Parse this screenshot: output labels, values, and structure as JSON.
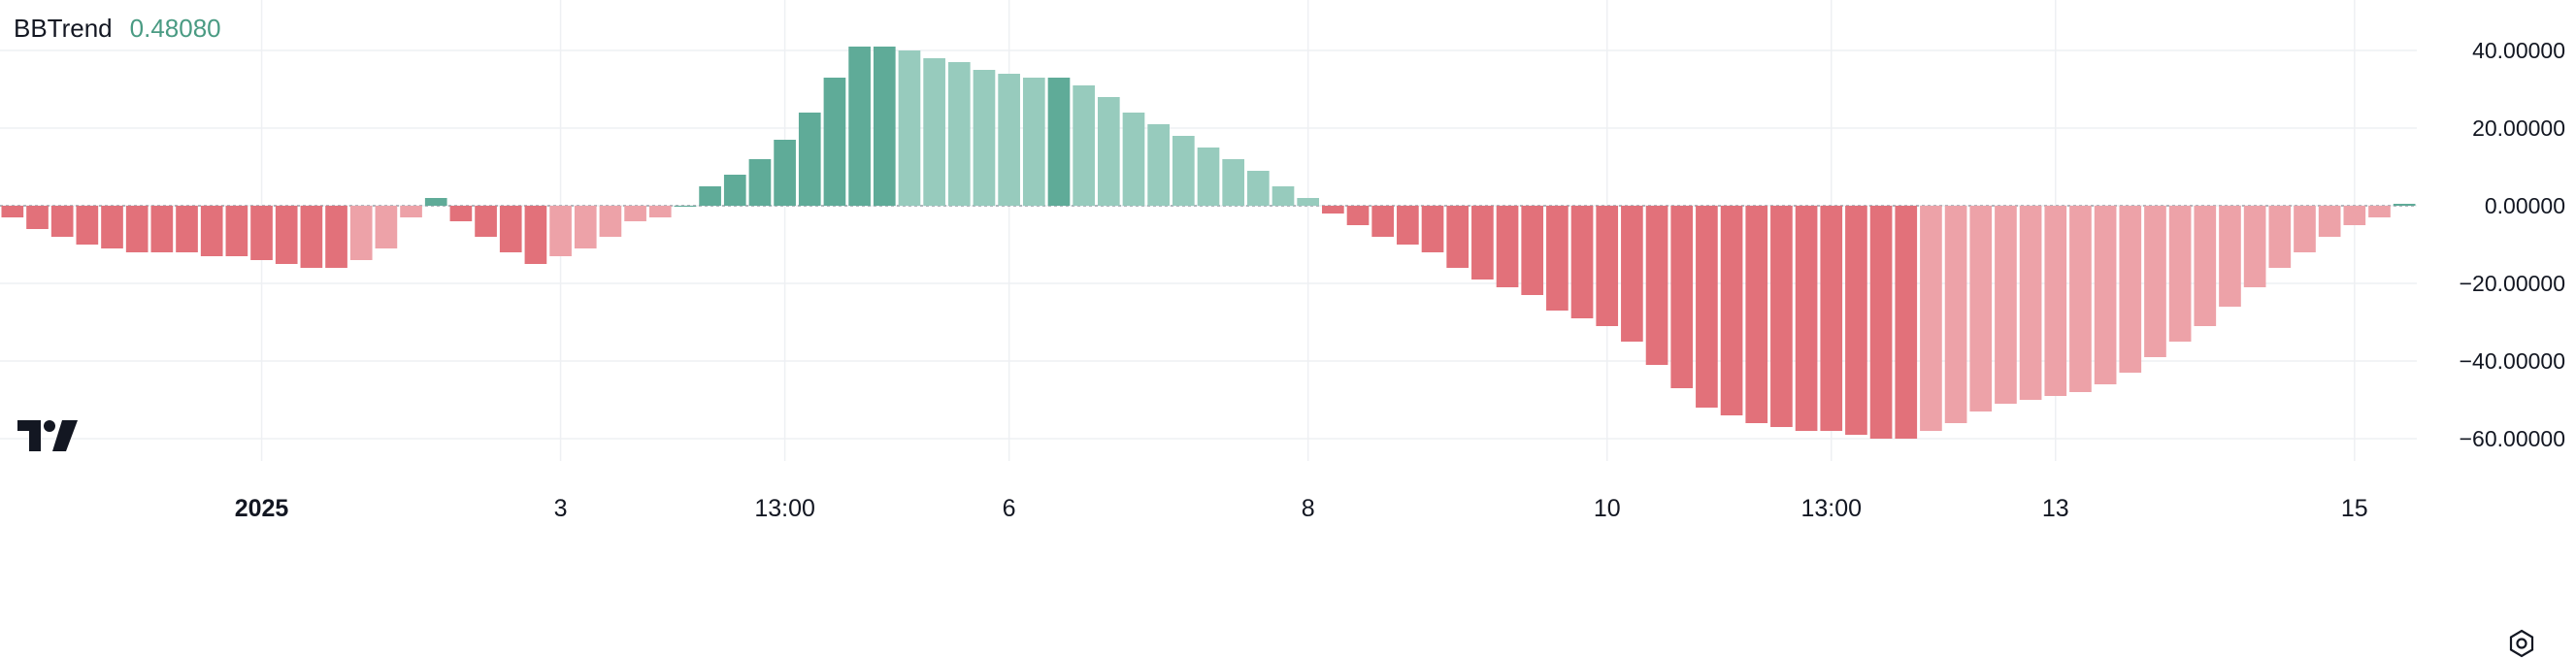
{
  "legend": {
    "name": "BBTrend",
    "value": "0.48080",
    "value_color": "#4a9b83"
  },
  "logo": {
    "icon": "tradingview-logo-icon"
  },
  "settings": {
    "icon": "gear-icon"
  },
  "colors": {
    "pos_strong": "#5fab98",
    "pos_weak": "#97cbbd",
    "neg_strong": "#e2717a",
    "neg_weak": "#eda2a8"
  },
  "chart_data": {
    "type": "bar",
    "title": "",
    "xlabel": "",
    "ylabel": "",
    "ylim": [
      -68,
      50
    ],
    "y_ticks": [
      40,
      20,
      0,
      -20,
      -40,
      -60
    ],
    "y_tick_labels": [
      "40.00000",
      "20.00000",
      "0.00000",
      "−20.00000",
      "−40.00000",
      "−60.00000"
    ],
    "x_ticks": [
      {
        "label": "2025",
        "index": 10,
        "bold": true
      },
      {
        "label": "3",
        "index": 22,
        "bold": false
      },
      {
        "label": "13:00",
        "index": 31,
        "bold": false
      },
      {
        "label": "6",
        "index": 40,
        "bold": false
      },
      {
        "label": "8",
        "index": 52,
        "bold": false
      },
      {
        "label": "10",
        "index": 64,
        "bold": false
      },
      {
        "label": "13:00",
        "index": 73,
        "bold": false
      },
      {
        "label": "13",
        "index": 82,
        "bold": false
      },
      {
        "label": "15",
        "index": 94,
        "bold": false
      }
    ],
    "values": [
      -3,
      -6,
      -8,
      -10,
      -11,
      -12,
      -12,
      -12,
      -13,
      -13,
      -14,
      -15,
      -16,
      -16,
      -14,
      -11,
      -3,
      2,
      -4,
      -8,
      -12,
      -15,
      -13,
      -11,
      -8,
      -4,
      -3,
      0,
      5,
      8,
      12,
      17,
      24,
      33,
      41,
      41,
      40,
      38,
      37,
      35,
      34,
      33,
      33,
      31,
      28,
      24,
      21,
      18,
      15,
      12,
      9,
      5,
      2,
      -2,
      -5,
      -8,
      -10,
      -12,
      -16,
      -19,
      -21,
      -23,
      -27,
      -29,
      -31,
      -35,
      -41,
      -47,
      -52,
      -54,
      -56,
      -57,
      -58,
      -58,
      -59,
      -60,
      -60,
      -58,
      -56,
      -53,
      -51,
      -50,
      -49,
      -48,
      -46,
      -43,
      -39,
      -35,
      -31,
      -26,
      -21,
      -16,
      -12,
      -8,
      -5,
      -3,
      0.5
    ]
  }
}
